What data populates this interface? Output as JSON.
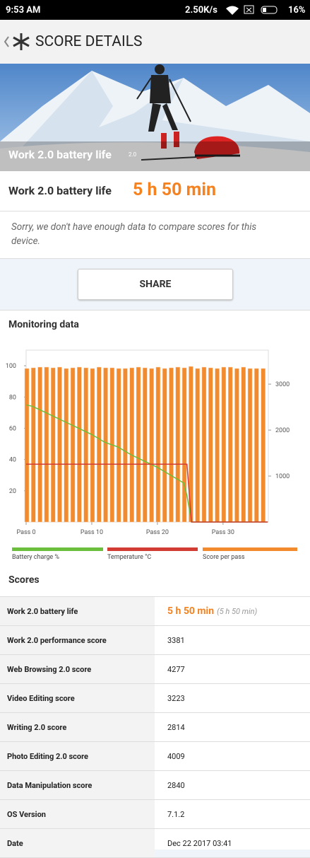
{
  "status_bar": {
    "time": "9:53 AM",
    "speed": "2.50K/s",
    "battery": "16%"
  },
  "header": {
    "title": "SCORE DETAILS"
  },
  "hero": {
    "caption": "Work 2.0 battery life",
    "version": "2.0"
  },
  "result": {
    "label": "Work 2.0 battery life",
    "value": "5 h 50 min"
  },
  "message": "Sorry, we don't have enough data to compare scores for this device.",
  "share_button": "SHARE",
  "monitoring": {
    "title": "Monitoring data",
    "chart": {
      "type": "combo",
      "xlim": [
        0,
        36.9
      ],
      "xticks": [
        {
          "value": 0,
          "label": "Pass 0"
        },
        {
          "value": 10,
          "label": "Pass 10"
        },
        {
          "value": 20,
          "label": "Pass 20"
        },
        {
          "value": 30,
          "label": "Pass 30"
        }
      ],
      "ylim": [
        0,
        110
      ],
      "yticks": [
        20,
        40,
        60,
        80,
        100
      ],
      "y2lim": [
        0,
        3740
      ],
      "y2ticks": [
        1000,
        2000,
        3000
      ],
      "series": [
        {
          "name": "Battery charge %",
          "color": "#6cbf3c",
          "type": "line",
          "x": [
            0,
            1,
            2,
            4,
            6,
            8,
            10,
            12,
            14,
            16,
            18,
            20,
            22,
            24,
            24.5,
            25.2,
            36.8
          ],
          "values": [
            75,
            74,
            72,
            68,
            64,
            60,
            56,
            51,
            48,
            43,
            39,
            35,
            30,
            25,
            17,
            0,
            0
          ]
        },
        {
          "name": "Temperature °C",
          "color": "#d23c33",
          "type": "line",
          "x": [
            0,
            24.5,
            25.2,
            36.8
          ],
          "values": [
            37,
            37,
            0,
            0
          ]
        },
        {
          "name": "Score per pass",
          "color": "#f28a2e",
          "type": "bar",
          "axis": "y2",
          "values": [
            3340,
            3355,
            3370,
            3370,
            3355,
            3370,
            3340,
            3355,
            3370,
            3355,
            3340,
            3370,
            3355,
            3355,
            3340,
            3340,
            3355,
            3370,
            3355,
            3340,
            3370,
            3340,
            3355,
            3370,
            3355,
            3385,
            3340,
            3370,
            3355,
            3340,
            3370,
            3370,
            3340,
            3370,
            3340,
            3340,
            3340
          ]
        }
      ]
    }
  },
  "scores": {
    "title": "Scores",
    "rows": [
      [
        "Work 2.0 battery life",
        "5 h 50 min",
        "(5 h 50 min)"
      ],
      [
        "Work 2.0 performance score",
        "3381"
      ],
      [
        "Web Browsing 2.0 score",
        "4277"
      ],
      [
        "Video Editing score",
        "3223"
      ],
      [
        "Writing 2.0 score",
        "2814"
      ],
      [
        "Photo Editing 2.0 score",
        "4009"
      ],
      [
        "Data Manipulation score",
        "2840"
      ],
      [
        "OS Version",
        "7.1.2"
      ],
      [
        "Date",
        "Dec 22 2017 03:41"
      ]
    ]
  }
}
